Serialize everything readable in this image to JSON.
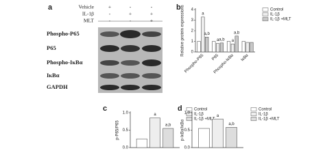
{
  "blot": {
    "panel": "a",
    "treatments": [
      {
        "label": "Vehicle",
        "signs": [
          "+",
          "-",
          "-"
        ]
      },
      {
        "label": "IL-1β",
        "signs": [
          "-",
          "+",
          "+"
        ]
      },
      {
        "label": "MLT",
        "signs": [
          "-",
          "-",
          "+"
        ]
      }
    ],
    "rows": [
      "Phospho-P65",
      "P65",
      "Phospho-IκBα",
      "IκBα",
      "GAPDH"
    ]
  },
  "chart_data": [
    {
      "type": "bar",
      "panel": "b",
      "ylabel": "Relative protein expressions",
      "categories": [
        "Phospho-P65",
        "P65",
        "Phospho-IκBα",
        "IκBα"
      ],
      "series": [
        {
          "name": "Control",
          "color": "#ffffff",
          "values": [
            1,
            1,
            1,
            1
          ]
        },
        {
          "name": "IL-1β",
          "color": "#eeeeee",
          "values": [
            3.3,
            0.8,
            0.75,
            0.9
          ],
          "annotations": [
            "a",
            "a",
            "a",
            null
          ]
        },
        {
          "name": "IL-1β +MLT",
          "color": "#c8c8c8",
          "values": [
            1.4,
            0.85,
            1.5,
            0.9
          ],
          "annotations": [
            "a,b",
            "a,b",
            "a,b",
            null
          ]
        }
      ],
      "ylim": [
        0,
        4
      ],
      "yticks": [
        0,
        1,
        2,
        3,
        4
      ]
    },
    {
      "type": "bar",
      "panel": "c",
      "ylabel": "p-P65/P65",
      "categories": [
        null
      ],
      "series": [
        {
          "name": "Control",
          "color": "#ffffff",
          "values": [
            0.25
          ]
        },
        {
          "name": "IL-1β",
          "color": "#eeeeee",
          "values": [
            0.85
          ],
          "annotations": [
            "a"
          ]
        },
        {
          "name": "IL-1β +MLT",
          "color": "#dddddd",
          "values": [
            0.55
          ],
          "annotations": [
            "a,b"
          ]
        }
      ],
      "ylim": [
        0,
        1
      ],
      "yticks": [
        {
          "value": 0,
          "label": "0.0"
        },
        0.5,
        {
          "value": 1,
          "label": "1.0"
        }
      ]
    },
    {
      "type": "bar",
      "panel": "d",
      "ylabel": "p-IκBα/IκBα",
      "categories": [
        null
      ],
      "series": [
        {
          "name": "Control",
          "color": "#ffffff",
          "values": [
            0.55
          ]
        },
        {
          "name": "IL-1β",
          "color": "#eeeeee",
          "values": [
            0.82
          ],
          "annotations": [
            "a"
          ]
        },
        {
          "name": "IL-1β +MLT",
          "color": "#dddddd",
          "values": [
            0.58
          ],
          "annotations": [
            "a,b"
          ]
        }
      ],
      "ylim": [
        0,
        1
      ],
      "yticks": [
        {
          "value": 0,
          "label": "0.0"
        },
        0.5,
        {
          "value": 1,
          "label": "1.0"
        }
      ]
    }
  ]
}
